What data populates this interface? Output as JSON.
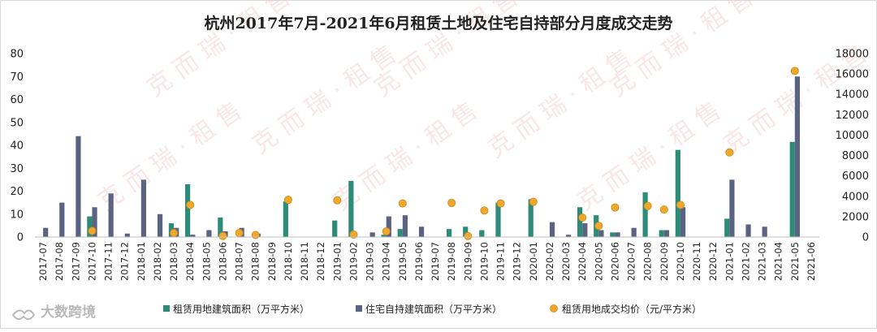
{
  "chart_data": {
    "type": "bar",
    "title": "杭州2017年7月-2021年6月租赁土地及住宅自持部分月度成交走势",
    "categories": [
      "2017-07",
      "2017-08",
      "2017-09",
      "2017-10",
      "2017-11",
      "2017-12",
      "2018-01",
      "2018-02",
      "2018-03",
      "2018-04",
      "2018-05",
      "2018-06",
      "2018-07",
      "2018-08",
      "2018-09",
      "2018-10",
      "2018-11",
      "2018-12",
      "2019-01",
      "2019-02",
      "2019-03",
      "2019-04",
      "2019-05",
      "2019-06",
      "2019-07",
      "2019-08",
      "2019-09",
      "2019-10",
      "2019-11",
      "2019-12",
      "2020-01",
      "2020-02",
      "2020-03",
      "2020-04",
      "2020-05",
      "2020-06",
      "2020-07",
      "2020-08",
      "2020-09",
      "2020-10",
      "2020-11",
      "2020-12",
      "2021-01",
      "2021-02",
      "2021-03",
      "2021-04",
      "2021-05",
      "2021-06"
    ],
    "series": [
      {
        "name": "租赁用地建筑面积（万平方米）",
        "axis": "left",
        "kind": "bar",
        "color": "#2e8b7a",
        "values": [
          0,
          0,
          0,
          9,
          0,
          0,
          0,
          0,
          6,
          23,
          0,
          8.5,
          0,
          0,
          0,
          15.5,
          0,
          0,
          7.2,
          24.5,
          0,
          1,
          3.5,
          0,
          0,
          3.5,
          4.5,
          3,
          15,
          0,
          16.5,
          0,
          0,
          13,
          9.5,
          2,
          0,
          19.5,
          3,
          38,
          0,
          0,
          8,
          0,
          0,
          0,
          41.5,
          0
        ]
      },
      {
        "name": "住宅自持建筑面积（万平方米）",
        "axis": "left",
        "kind": "bar",
        "color": "#5a6482",
        "values": [
          4,
          15,
          44,
          13,
          19,
          1.5,
          25,
          10,
          4,
          1,
          3,
          2.5,
          4,
          1.5,
          0,
          0,
          0,
          0,
          0,
          0,
          2,
          9,
          9.5,
          4.5,
          0,
          0,
          0,
          0,
          0,
          0,
          0,
          6.5,
          1,
          6,
          3,
          2,
          4,
          0,
          3,
          13,
          0,
          0,
          25,
          5.5,
          4.5,
          0,
          70,
          0
        ]
      },
      {
        "name": "租赁用地成交均价（元/平方米）",
        "axis": "right",
        "kind": "scatter",
        "color": "#f0a82c",
        "values": [
          null,
          null,
          null,
          600,
          null,
          null,
          null,
          null,
          400,
          3150,
          null,
          100,
          400,
          200,
          null,
          3650,
          null,
          null,
          3600,
          250,
          null,
          550,
          3300,
          null,
          null,
          3350,
          100,
          2600,
          3300,
          null,
          3450,
          null,
          null,
          1900,
          1100,
          2900,
          null,
          3050,
          2700,
          3150,
          null,
          null,
          8300,
          null,
          null,
          null,
          16300,
          null
        ]
      }
    ],
    "y_left": {
      "ylim": [
        0,
        80
      ],
      "ticks": [
        "0",
        "10",
        "20",
        "30",
        "40",
        "50",
        "60",
        "70",
        "80"
      ]
    },
    "y_right": {
      "ylim": [
        0,
        18000
      ],
      "ticks": [
        "0",
        "2000",
        "4000",
        "6000",
        "8000",
        "10000",
        "12000",
        "14000",
        "16000",
        "18000"
      ]
    },
    "grid": false,
    "legend_position": "bottom"
  },
  "watermark": {
    "text": "克 而 瑞 · 租 售"
  },
  "brand": {
    "text": "大数跨境"
  }
}
